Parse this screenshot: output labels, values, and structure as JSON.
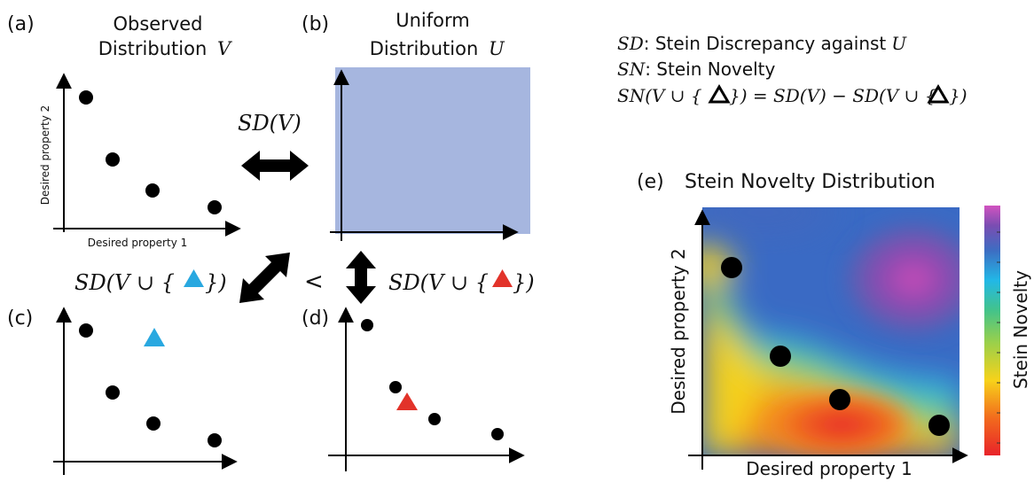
{
  "panels": {
    "a": {
      "letter": "(a)",
      "title_line1": "Observed",
      "title_line2": "Distribution",
      "title_var": "V",
      "xlabel": "Desired property 1",
      "ylabel": "Desired property 2"
    },
    "b": {
      "letter": "(b)",
      "title_line1": "Uniform",
      "title_line2": "Distribution",
      "title_var": "U"
    },
    "c": {
      "letter": "(c)"
    },
    "d": {
      "letter": "(d)"
    },
    "e": {
      "letter": "(e)",
      "title": "Stein Novelty Distribution",
      "xlabel": "Desired property 1",
      "ylabel": "Desired property 2",
      "colorbar_label": "Stein Novelty"
    }
  },
  "relations": {
    "sd_v": "SD(V)",
    "sd_blue_prefix": "SD(V ∪ {",
    "sd_blue_suffix": "})",
    "sd_red_prefix": "SD(V ∪ {",
    "sd_red_suffix": "})",
    "less_than": "<"
  },
  "legend": {
    "line1_sym": "SD",
    "line1_text": ": Stein Discrepancy against",
    "line1_var": "U",
    "line2_sym": "SN",
    "line2_text": ": Stein Novelty",
    "line3_lhs": "SN(V ∪ {",
    "line3_mid": "}) = SD(V) − SD(V ∪ {",
    "line3_end": "})"
  },
  "colors": {
    "uniform_fill": "#a6b6df",
    "blue_triangle": "#29a8e0",
    "red_triangle": "#e2332a",
    "dot": "#000000"
  }
}
